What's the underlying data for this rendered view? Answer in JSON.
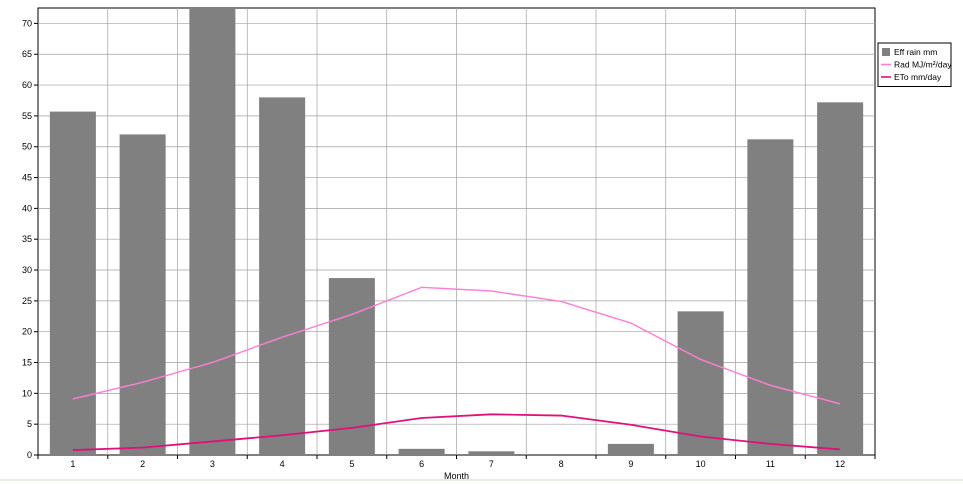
{
  "chart_data": {
    "type": "bar",
    "categories": [
      "1",
      "2",
      "3",
      "4",
      "5",
      "6",
      "7",
      "8",
      "9",
      "10",
      "11",
      "12"
    ],
    "series": [
      {
        "name": "Eff rain",
        "unit": "mm",
        "type": "bar",
        "color": "#808080",
        "values": [
          55.7,
          52.0,
          72.5,
          58.0,
          28.7,
          1.0,
          0.6,
          0.0,
          1.8,
          23.3,
          51.2,
          57.2
        ]
      },
      {
        "name": "Rad",
        "unit": "MJ/m²/day",
        "type": "line",
        "color": "#ff7fd4",
        "values": [
          9.1,
          11.8,
          15.0,
          19.1,
          22.8,
          27.2,
          26.6,
          24.9,
          21.4,
          15.5,
          11.3,
          8.3
        ]
      },
      {
        "name": "ETo",
        "unit": "mm/day",
        "type": "line",
        "color": "#e0107a",
        "values": [
          0.8,
          1.2,
          2.2,
          3.2,
          4.4,
          6.0,
          6.6,
          6.4,
          4.9,
          3.0,
          1.8,
          0.9
        ]
      }
    ],
    "xlabel": "Month",
    "ylabel": "",
    "ylim": [
      0,
      72.5
    ],
    "yticks": [
      0,
      5,
      10,
      15,
      20,
      25,
      30,
      35,
      40,
      45,
      50,
      55,
      60,
      65,
      70
    ],
    "grid": true,
    "legend_position": "right"
  }
}
